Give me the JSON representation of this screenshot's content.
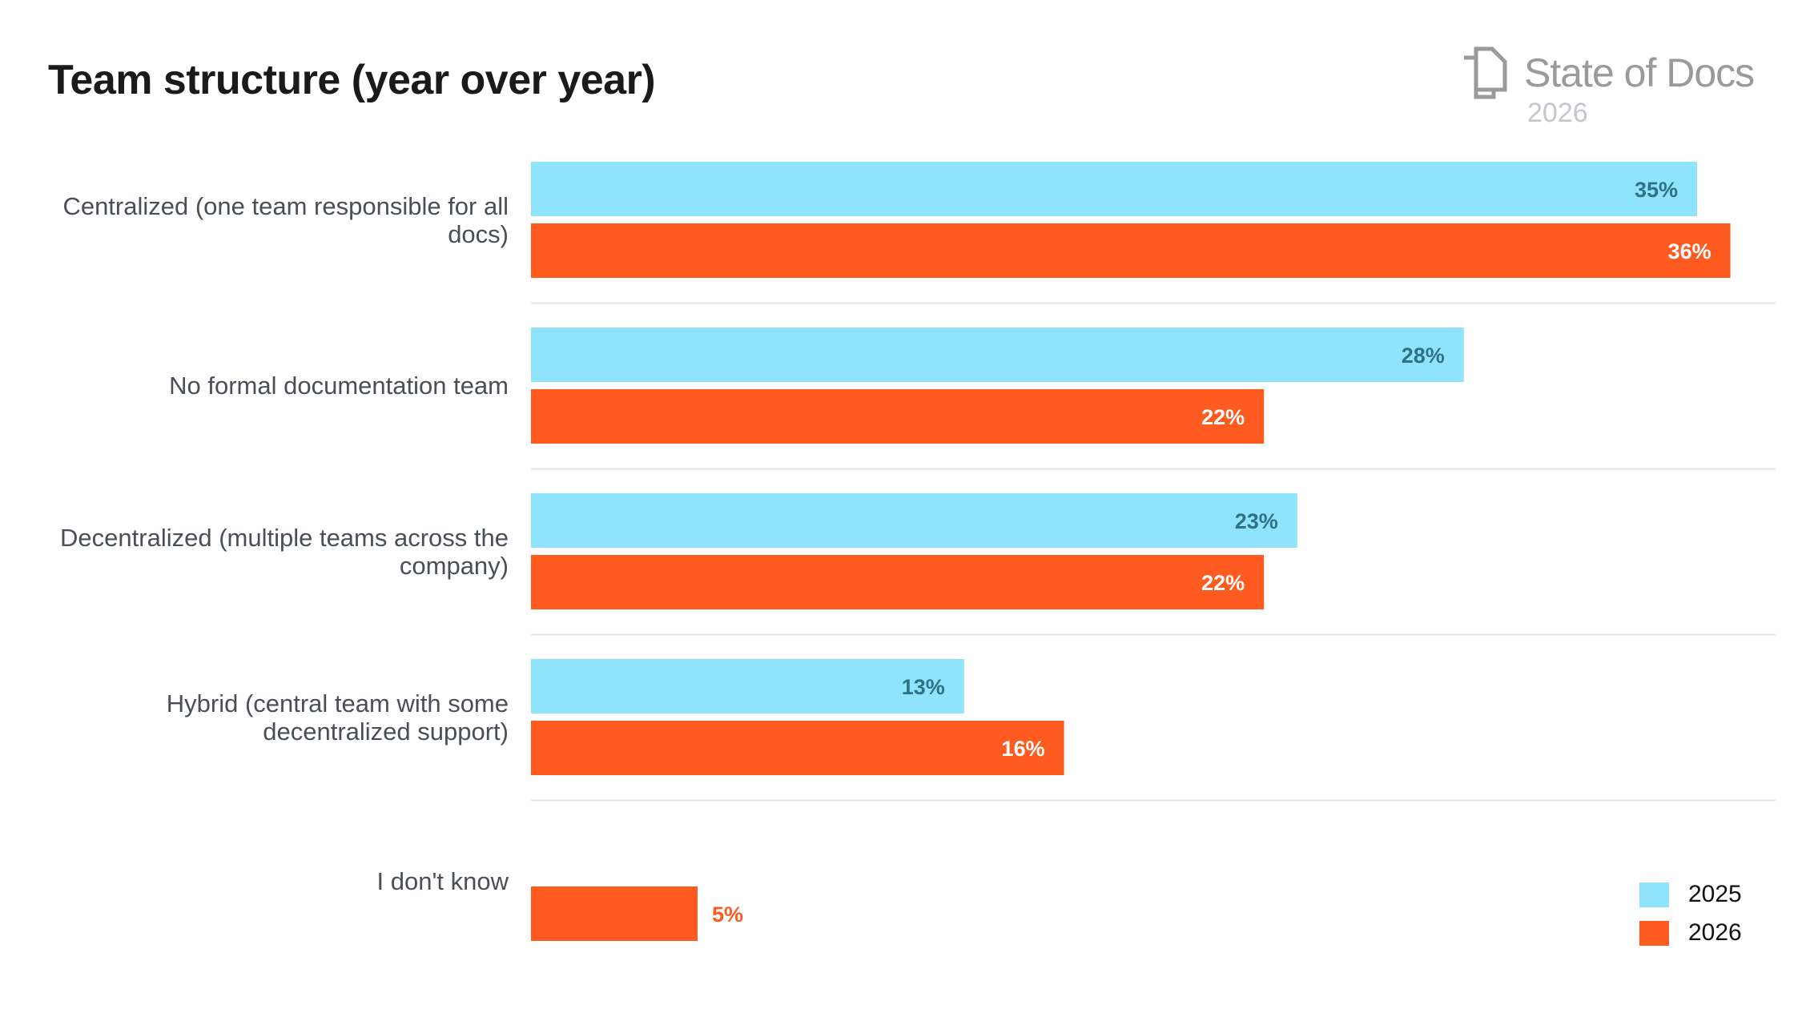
{
  "title": "Team structure (year over year)",
  "logo": {
    "text": "State of Docs",
    "year": "2026"
  },
  "chart_data": {
    "type": "bar",
    "orientation": "horizontal",
    "title": "Team structure (year over year)",
    "categories": [
      "Centralized (one team responsible for all docs)",
      "No formal documentation team",
      "Decentralized (multiple teams across the company)",
      "Hybrid (central team with some decentralized support)",
      "I don't know"
    ],
    "series": [
      {
        "name": "2025",
        "color": "#8fe3fb",
        "label_color": "#2f7285",
        "values": [
          35,
          28,
          23,
          13,
          null
        ],
        "labels": [
          "35%",
          "28%",
          "23%",
          "13%",
          ""
        ]
      },
      {
        "name": "2026",
        "color": "#ff5a1f",
        "label_color": "#ffffff",
        "values": [
          36,
          22,
          22,
          16,
          5
        ],
        "labels": [
          "36%",
          "22%",
          "22%",
          "16%",
          "5%"
        ]
      }
    ],
    "unit": "%",
    "grid": false,
    "legend": "bottom-right"
  }
}
